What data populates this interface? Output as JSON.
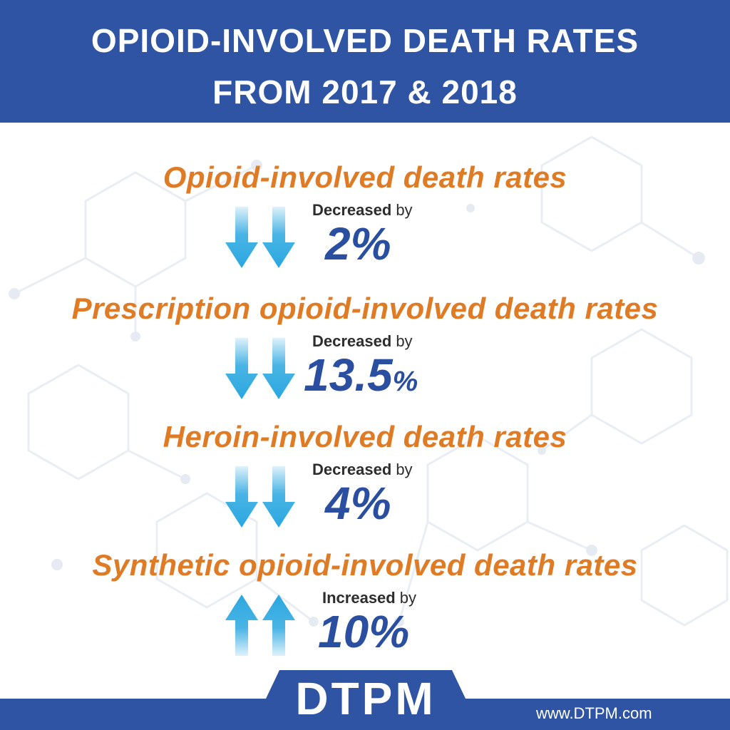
{
  "header": {
    "title_line1": "OPIOID-INVOLVED DEATH RATES",
    "title_line2": "FROM 2017 & 2018"
  },
  "stats": [
    {
      "title": "Opioid-involved death rates",
      "direction": "down",
      "change_word": "Decreased",
      "change_by": "by",
      "value": "2%",
      "value_number": 2
    },
    {
      "title": "Prescription opioid-involved death rates",
      "direction": "down",
      "change_word": "Decreased",
      "change_by": "by",
      "value": "13.5",
      "value_unit": "%",
      "value_number": 13.5
    },
    {
      "title": "Heroin-involved death rates",
      "direction": "down",
      "change_word": "Decreased",
      "change_by": "by",
      "value": "4%",
      "value_number": 4
    },
    {
      "title": "Synthetic opioid-involved death rates",
      "direction": "up",
      "change_word": "Increased",
      "change_by": "by",
      "value": "10%",
      "value_number": 10
    }
  ],
  "footer": {
    "logo": "DTPM",
    "website": "www.DTPM.com"
  },
  "colors": {
    "brand_blue": "#2f54a3",
    "accent_orange": "#e07b25",
    "arrow_blue": "#2aa7e0",
    "value_blue": "#2b4fa0"
  },
  "icons": {
    "down": "arrow-down-icon",
    "up": "arrow-up-icon"
  }
}
